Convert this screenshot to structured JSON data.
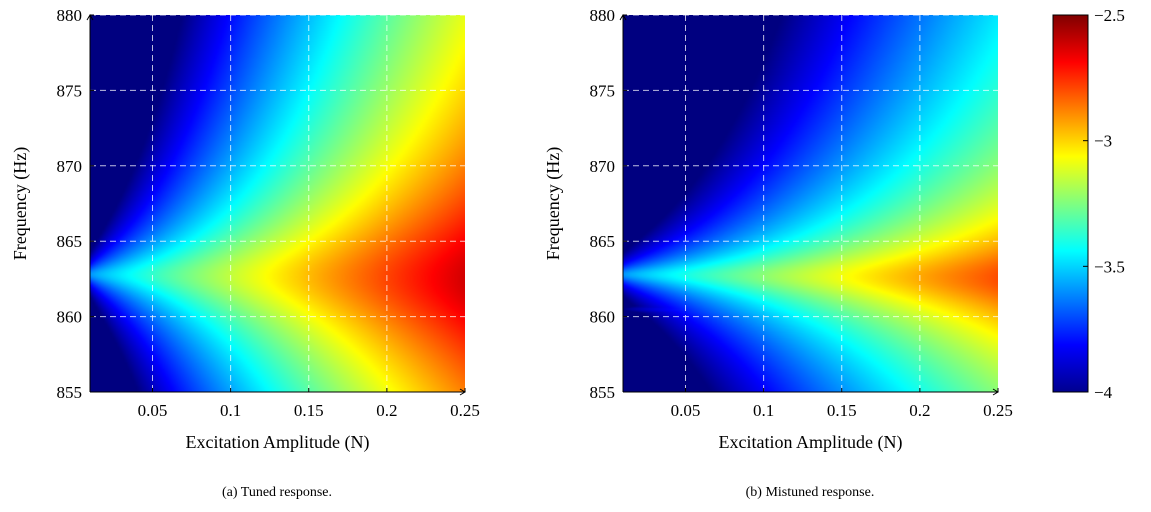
{
  "chart_data": [
    {
      "type": "heatmap",
      "caption": "(a) Tuned response.",
      "xlabel": "Excitation Amplitude (N)",
      "ylabel": "Frequency (Hz)",
      "xlim": [
        0.01,
        0.25
      ],
      "ylim": [
        855,
        880
      ],
      "xticks": [
        "0.05",
        "0.1",
        "0.15",
        "0.2",
        "0.25"
      ],
      "yticks": [
        "855",
        "860",
        "865",
        "870",
        "875",
        "880"
      ],
      "grid": true,
      "colormap": "jet",
      "clim": [
        -4,
        -2.5
      ],
      "peaks": [
        {
          "freq_at_min_amp": 862.8,
          "freq_shift_per_N": -1.2,
          "peak_at_min_amp": -3.6,
          "peak_at_max_amp": -2.62,
          "halfwidth_at_min_amp": 0.35,
          "halfwidth_at_max_amp": 3.4
        }
      ]
    },
    {
      "type": "heatmap",
      "caption": "(b) Mistuned response.",
      "xlabel": "Excitation Amplitude (N)",
      "ylabel": "Frequency (Hz)",
      "xlim": [
        0.01,
        0.25
      ],
      "ylim": [
        855,
        880
      ],
      "xticks": [
        "0.05",
        "0.1",
        "0.15",
        "0.2",
        "0.25"
      ],
      "yticks": [
        "855",
        "860",
        "865",
        "870",
        "875",
        "880"
      ],
      "grid": true,
      "colormap": "jet",
      "clim": [
        -4,
        -2.5
      ],
      "peaks": [
        {
          "freq_at_min_amp": 862.8,
          "freq_shift_per_N": -1.0,
          "peak_at_min_amp": -3.6,
          "peak_at_max_amp": -2.8,
          "halfwidth_at_min_amp": 0.35,
          "halfwidth_at_max_amp": 1.7
        },
        {
          "freq_at_min_amp": 860.5,
          "freq_shift_per_N": 0.0,
          "peak_at_min_amp": -4.0,
          "peak_at_max_amp": -3.0,
          "halfwidth_at_min_amp": 0.2,
          "halfwidth_at_max_amp": 0.9
        },
        {
          "freq_at_min_amp": 872.6,
          "freq_shift_per_N": -1.5,
          "peak_at_min_amp": -4.3,
          "peak_at_max_amp": -3.75,
          "halfwidth_at_min_amp": 0.3,
          "halfwidth_at_max_amp": 0.6
        }
      ]
    }
  ],
  "colorbar": {
    "ticks": [
      -2.5,
      -3,
      -3.5,
      -4
    ],
    "tick_labels": [
      "−2.5",
      "−3",
      "−3.5",
      "−4"
    ],
    "colormap": "jet",
    "range": [
      -4,
      -2.5
    ]
  }
}
